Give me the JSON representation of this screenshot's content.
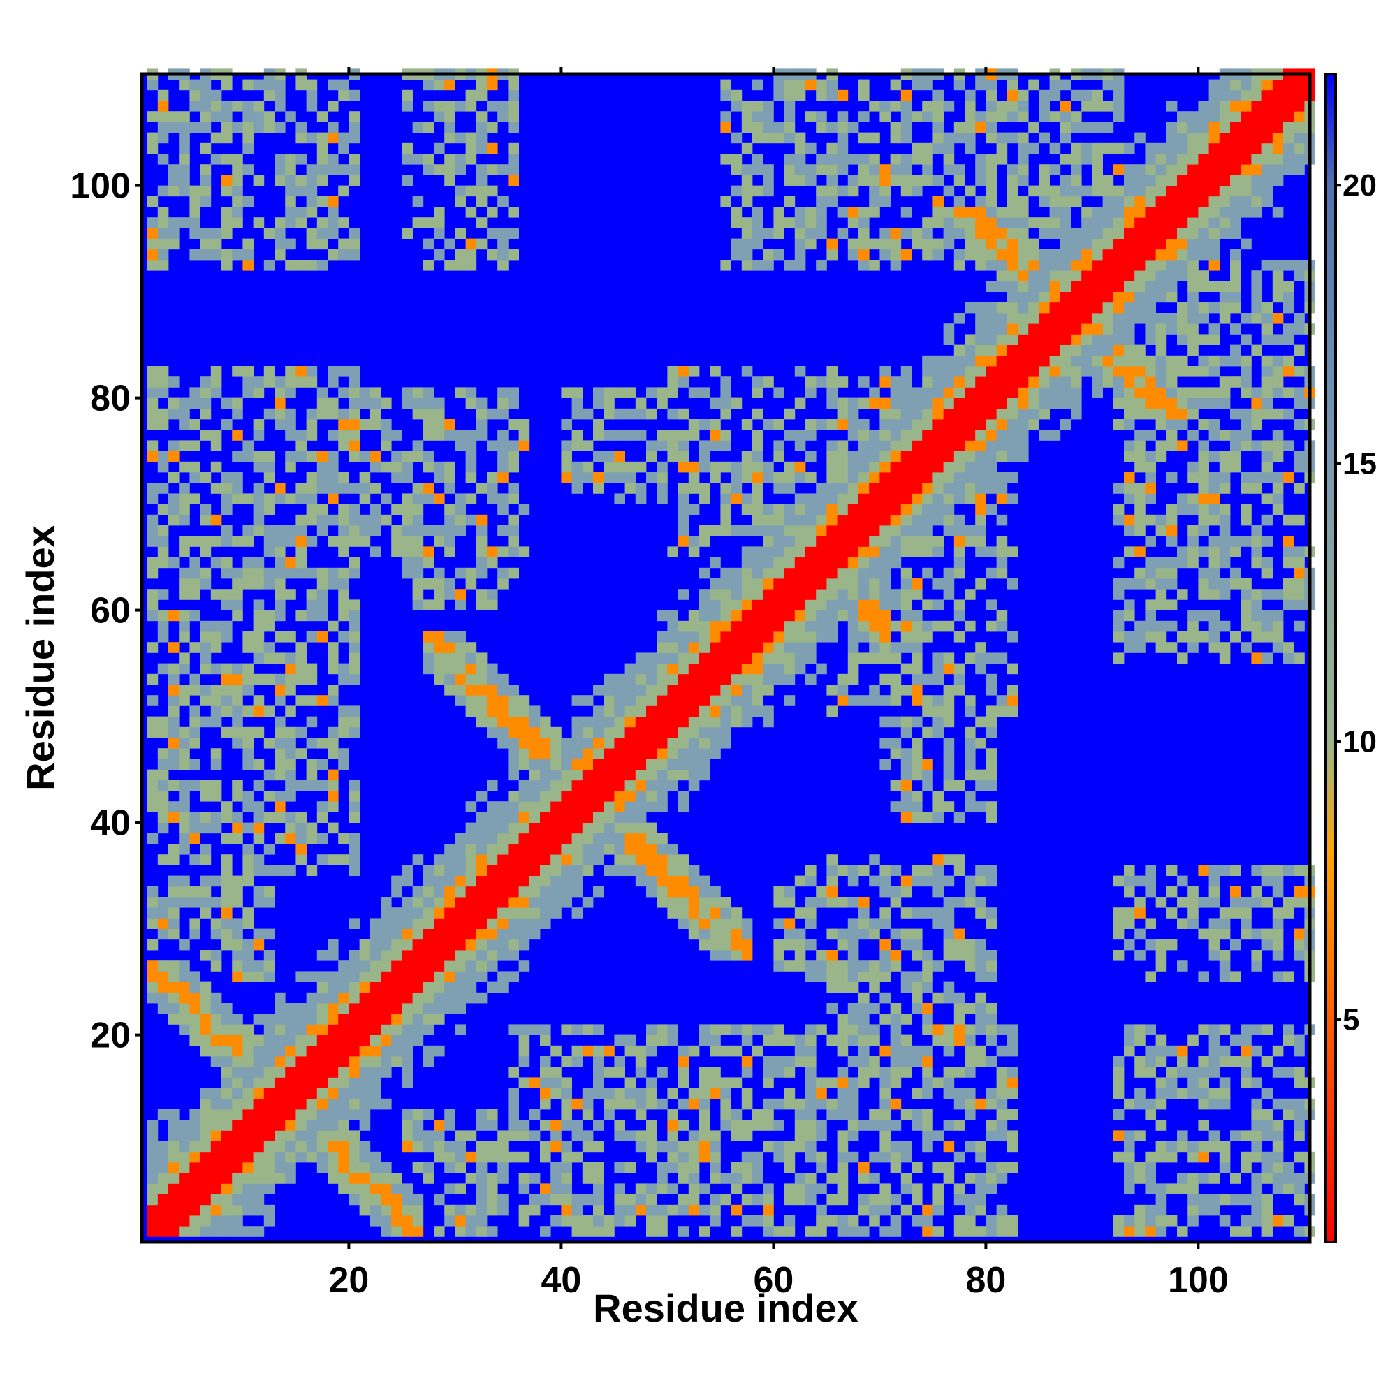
{
  "chart_data": {
    "type": "heatmap",
    "title": "",
    "xlabel": "Residue index",
    "ylabel": "Residue index",
    "n_residues": 110,
    "xlim": [
      1,
      110
    ],
    "ylim": [
      1,
      110
    ],
    "x_ticks": [
      20,
      40,
      60,
      80,
      100
    ],
    "y_ticks": [
      20,
      40,
      60,
      80,
      100
    ],
    "colorbar": {
      "ticks": [
        5,
        10,
        15,
        20
      ],
      "range": [
        1,
        22
      ],
      "stops": [
        {
          "value": 1,
          "color": "#ff0000"
        },
        {
          "value": 8,
          "color": "#ffa500"
        },
        {
          "value": 10,
          "color": "#9ab58a"
        },
        {
          "value": 15,
          "color": "#7a9ab2"
        },
        {
          "value": 20,
          "color": "#4d74b0"
        },
        {
          "value": 22,
          "color": "#0000ff"
        }
      ]
    },
    "colors": {
      "contact": "#ff0000",
      "near": "#ff8c00",
      "mid": "#9ab58a",
      "far": "#7f9fb3",
      "background": "#0000ff"
    },
    "structure": {
      "diagonal_band_halfwidth": 2,
      "helix_segments": [
        [
          1,
          26
        ],
        [
          27,
          57
        ],
        [
          58,
          90
        ],
        [
          91,
          110
        ]
      ],
      "antidiagonal_features": [
        {
          "x_range": [
            1,
            26
          ],
          "y_range": [
            1,
            26
          ]
        },
        {
          "x_range": [
            27,
            57
          ],
          "y_range": [
            27,
            57
          ]
        },
        {
          "x_range": [
            58,
            70
          ],
          "y_range": [
            55,
            67
          ]
        },
        {
          "x_range": [
            76,
            99
          ],
          "y_range": [
            78,
            97
          ]
        }
      ],
      "off_diagonal_blocks": [
        {
          "x": [
            1,
            20
          ],
          "y": [
            60,
            82
          ],
          "density": 0.55
        },
        {
          "x": [
            25,
            35
          ],
          "y": [
            60,
            80
          ],
          "density": 0.6
        },
        {
          "x": [
            6,
            16
          ],
          "y": [
            92,
            110
          ],
          "density": 0.55
        },
        {
          "x": [
            25,
            33
          ],
          "y": [
            92,
            110
          ],
          "density": 0.45
        },
        {
          "x": [
            50,
            70
          ],
          "y": [
            65,
            82
          ],
          "density": 0.5
        },
        {
          "x": [
            55,
            70
          ],
          "y": [
            92,
            110
          ],
          "density": 0.5
        },
        {
          "x": [
            70,
            92
          ],
          "y": [
            95,
            110
          ],
          "density": 0.6
        },
        {
          "x": [
            65,
            80
          ],
          "y": [
            1,
            36
          ],
          "density": 0.45
        },
        {
          "x": [
            92,
            110
          ],
          "y": [
            70,
            86
          ],
          "density": 0.55
        },
        {
          "x": [
            92,
            110
          ],
          "y": [
            55,
            68
          ],
          "density": 0.45
        },
        {
          "x": [
            92,
            110
          ],
          "y": [
            1,
            20
          ],
          "density": 0.55
        },
        {
          "x": [
            92,
            110
          ],
          "y": [
            28,
            35
          ],
          "density": 0.45
        },
        {
          "x": [
            70,
            80
          ],
          "y": [
            40,
            62
          ],
          "density": 0.5
        },
        {
          "x": [
            35,
            60
          ],
          "y": [
            1,
            20
          ],
          "density": 0.55
        },
        {
          "x": [
            1,
            12
          ],
          "y": [
            25,
            60
          ],
          "density": 0.6
        }
      ]
    }
  }
}
